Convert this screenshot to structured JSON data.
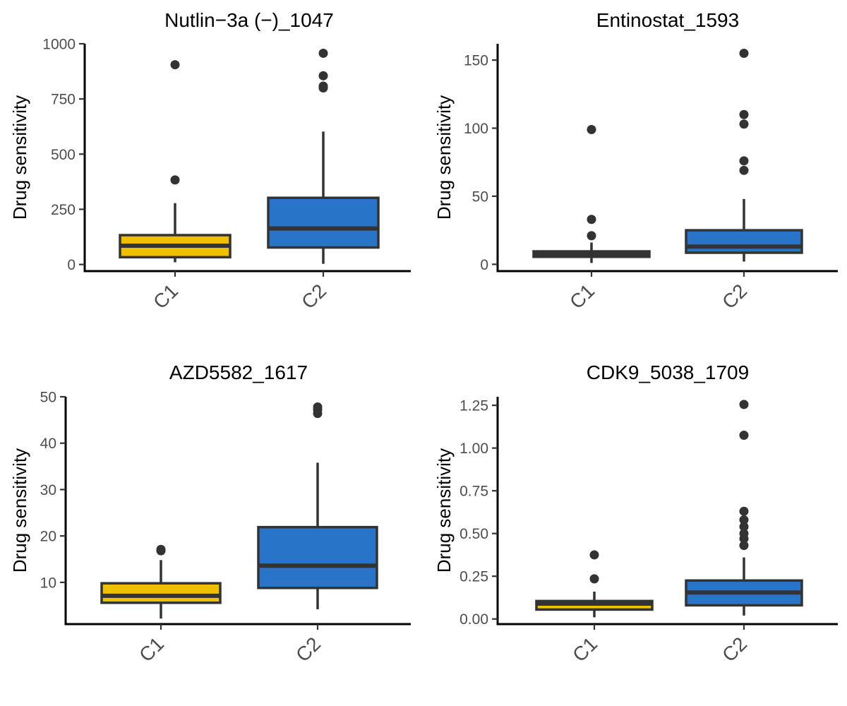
{
  "chart_data": [
    {
      "type": "box",
      "title": "Nutlin−3a (−)_1047",
      "ylabel": "Drug sensitivity",
      "categories": [
        "C1",
        "C2"
      ],
      "ylim": [
        -30,
        1000
      ],
      "yticks": [
        0,
        250,
        500,
        750,
        1000
      ],
      "tick_labels": [
        "0",
        "250",
        "500",
        "750",
        "1000"
      ],
      "boxes": [
        {
          "group": "C1",
          "whisker_low": 10,
          "q1": 33,
          "median": 85,
          "q3": 133,
          "whisker_high": 278,
          "outliers": [
            383,
            905
          ],
          "color": "#EFC000"
        },
        {
          "group": "C2",
          "whisker_low": 3,
          "q1": 77,
          "median": 163,
          "q3": 302,
          "whisker_high": 602,
          "outliers": [
            800,
            808,
            855,
            957
          ],
          "color": "#2874C8"
        }
      ]
    },
    {
      "type": "box",
      "title": "Entinostat_1593",
      "ylabel": "Drug sensitivity",
      "categories": [
        "C1",
        "C2"
      ],
      "ylim": [
        -5,
        162
      ],
      "yticks": [
        0,
        50,
        100,
        150
      ],
      "tick_labels": [
        "0",
        "50",
        "100",
        "150"
      ],
      "boxes": [
        {
          "group": "C1",
          "whisker_low": 1,
          "q1": 5.5,
          "median": 7.5,
          "q3": 9.5,
          "whisker_high": 16,
          "outliers": [
            21,
            33,
            99
          ],
          "color": "#EFC000"
        },
        {
          "group": "C2",
          "whisker_low": 2,
          "q1": 8.5,
          "median": 13,
          "q3": 25,
          "whisker_high": 48,
          "outliers": [
            69,
            76,
            103,
            110,
            155
          ],
          "color": "#2874C8"
        }
      ]
    },
    {
      "type": "box",
      "title": "AZD5582_1617",
      "ylabel": "Drug sensitivity",
      "categories": [
        "C1",
        "C2"
      ],
      "ylim": [
        1,
        50
      ],
      "yticks": [
        10,
        20,
        30,
        40,
        50
      ],
      "tick_labels": [
        "10",
        "20",
        "30",
        "40",
        "50"
      ],
      "boxes": [
        {
          "group": "C1",
          "whisker_low": 2.2,
          "q1": 5.6,
          "median": 7.1,
          "q3": 9.8,
          "whisker_high": 14.8,
          "outliers": [
            16.8,
            17.1
          ],
          "color": "#EFC000"
        },
        {
          "group": "C2",
          "whisker_low": 4.2,
          "q1": 8.8,
          "median": 13.6,
          "q3": 21.9,
          "whisker_high": 35.8,
          "outliers": [
            46.4,
            47.2,
            47.8
          ],
          "color": "#2874C8"
        }
      ]
    },
    {
      "type": "box",
      "title": "CDK9_5038_1709",
      "ylabel": "Drug sensitivity",
      "categories": [
        "C1",
        "C2"
      ],
      "ylim": [
        -0.03,
        1.3
      ],
      "yticks": [
        0,
        0.25,
        0.5,
        0.75,
        1.0,
        1.25
      ],
      "tick_labels": [
        "0.00",
        "0.25",
        "0.50",
        "0.75",
        "1.00",
        "1.25"
      ],
      "boxes": [
        {
          "group": "C1",
          "whisker_low": 0.01,
          "q1": 0.055,
          "median": 0.09,
          "q3": 0.105,
          "whisker_high": 0.16,
          "outliers": [
            0.235,
            0.375
          ],
          "color": "#EFC000"
        },
        {
          "group": "C2",
          "whisker_low": 0.02,
          "q1": 0.08,
          "median": 0.155,
          "q3": 0.225,
          "whisker_high": 0.36,
          "outliers": [
            0.43,
            0.47,
            0.5,
            0.54,
            0.58,
            0.63,
            1.075,
            1.255
          ],
          "color": "#2874C8"
        }
      ]
    }
  ]
}
